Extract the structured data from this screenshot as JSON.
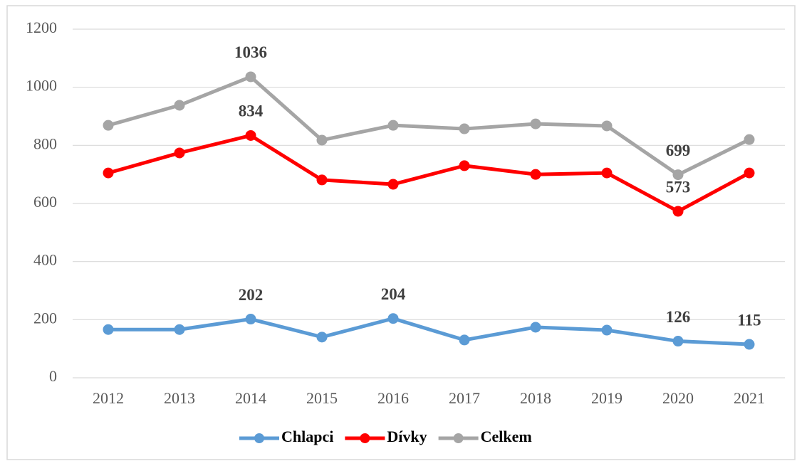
{
  "chart_data": {
    "type": "line",
    "categories": [
      "2012",
      "2013",
      "2014",
      "2015",
      "2016",
      "2017",
      "2018",
      "2019",
      "2020",
      "2021"
    ],
    "series": [
      {
        "name": "Chlapci",
        "color": "#5b9bd5",
        "values": [
          166,
          166,
          202,
          140,
          204,
          130,
          174,
          164,
          126,
          115
        ],
        "value_labels": [
          null,
          null,
          "202",
          null,
          "204",
          null,
          null,
          null,
          "126",
          "115"
        ]
      },
      {
        "name": "Dívky",
        "color": "#ff0000",
        "values": [
          705,
          774,
          834,
          681,
          666,
          730,
          700,
          705,
          573,
          705
        ],
        "value_labels": [
          null,
          null,
          "834",
          null,
          null,
          null,
          null,
          null,
          "573",
          null
        ]
      },
      {
        "name": "Celkem",
        "color": "#a5a5a5",
        "values": [
          869,
          938,
          1036,
          818,
          869,
          857,
          874,
          867,
          699,
          820
        ],
        "value_labels": [
          null,
          null,
          "1036",
          null,
          null,
          null,
          null,
          null,
          "699",
          null
        ]
      }
    ],
    "ylim": [
      0,
      1200
    ],
    "yticks": [
      0,
      200,
      400,
      600,
      800,
      1000,
      1200
    ],
    "grid": true,
    "legend": "bottom"
  }
}
